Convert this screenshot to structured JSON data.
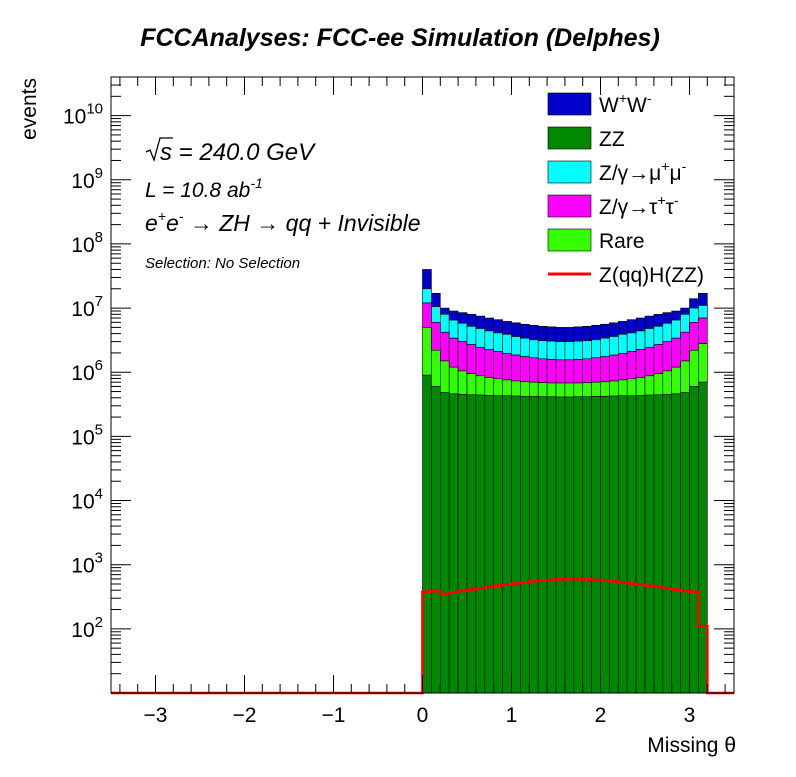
{
  "chart_data": {
    "type": "bar",
    "title": "FCCAnalyses: FCC-ee Simulation (Delphes)",
    "xlabel": "Missing θ",
    "ylabel": "events",
    "xlim": [
      -3.5,
      3.5
    ],
    "ylim": [
      10,
      40000000000
    ],
    "y_scale": "log",
    "x_ticks": [
      -3,
      -2,
      -1,
      0,
      1,
      2,
      3
    ],
    "y_tick_exponents": [
      2,
      3,
      4,
      5,
      6,
      7,
      8,
      9,
      10
    ],
    "y_tick_base": "10",
    "legend_position": "top-right",
    "stacked": true,
    "annotations": {
      "sqrt_s_prefix": "s",
      "sqrt_s_value": " = 240.0 GeV",
      "lumi_base": "L = 10.8 ab",
      "lumi_exp": "-1",
      "process_e": "e",
      "process_plus": "+",
      "process_e2": "e",
      "process_minus": "-",
      "process_rest": " → ZH → qq + Invisible",
      "selection": "Selection: No Selection"
    },
    "bins": {
      "centers": [
        0.05,
        0.15,
        0.25,
        0.35,
        0.45,
        0.55,
        0.65,
        0.75,
        0.85,
        0.95,
        1.05,
        1.15,
        1.25,
        1.35,
        1.45,
        1.55,
        1.65,
        1.75,
        1.85,
        1.95,
        2.05,
        2.15,
        2.25,
        2.35,
        2.45,
        2.55,
        2.65,
        2.75,
        2.85,
        2.95,
        3.05,
        3.15
      ],
      "width": 0.1
    },
    "stack_totals": [
      [
        0.05,
        40000000,
        20000000,
        12000000,
        5000000,
        900000
      ],
      [
        0.15,
        17000000,
        10500000,
        6000000,
        2200000,
        600000
      ],
      [
        0.25,
        10000000,
        8000000,
        4200000,
        1500000,
        480000
      ],
      [
        0.35,
        9000000,
        6500000,
        3400000,
        1200000,
        460000
      ],
      [
        0.45,
        8500000,
        5800000,
        3000000,
        1050000,
        450000
      ],
      [
        0.55,
        8000000,
        5200000,
        2700000,
        950000,
        445000
      ],
      [
        0.65,
        7500000,
        4800000,
        2450000,
        880000,
        440000
      ],
      [
        0.75,
        7000000,
        4400000,
        2250000,
        830000,
        435000
      ],
      [
        0.85,
        6600000,
        4100000,
        2100000,
        790000,
        430000
      ],
      [
        0.95,
        6200000,
        3900000,
        1950000,
        760000,
        430000
      ],
      [
        1.05,
        5900000,
        3600000,
        1850000,
        730000,
        425000
      ],
      [
        1.15,
        5600000,
        3400000,
        1750000,
        710000,
        420000
      ],
      [
        1.25,
        5400000,
        3200000,
        1680000,
        700000,
        420000
      ],
      [
        1.35,
        5200000,
        3100000,
        1620000,
        690000,
        415000
      ],
      [
        1.45,
        5100000,
        3050000,
        1580000,
        680000,
        415000
      ],
      [
        1.55,
        5000000,
        3000000,
        1560000,
        680000,
        410000
      ],
      [
        1.65,
        5000000,
        3000000,
        1560000,
        680000,
        410000
      ],
      [
        1.75,
        5100000,
        3050000,
        1580000,
        680000,
        415000
      ],
      [
        1.85,
        5200000,
        3100000,
        1620000,
        690000,
        415000
      ],
      [
        1.95,
        5400000,
        3200000,
        1680000,
        700000,
        420000
      ],
      [
        2.05,
        5600000,
        3400000,
        1750000,
        710000,
        420000
      ],
      [
        2.15,
        5900000,
        3600000,
        1850000,
        730000,
        425000
      ],
      [
        2.25,
        6200000,
        3900000,
        1950000,
        760000,
        430000
      ],
      [
        2.35,
        6600000,
        4100000,
        2100000,
        790000,
        430000
      ],
      [
        2.45,
        7000000,
        4400000,
        2250000,
        830000,
        435000
      ],
      [
        2.55,
        7500000,
        4800000,
        2450000,
        880000,
        440000
      ],
      [
        2.65,
        8000000,
        5200000,
        2700000,
        950000,
        445000
      ],
      [
        2.75,
        8500000,
        5800000,
        3000000,
        1050000,
        450000
      ],
      [
        2.85,
        9000000,
        6500000,
        3400000,
        1200000,
        460000
      ],
      [
        2.95,
        10000000,
        8000000,
        4200000,
        1500000,
        480000
      ],
      [
        3.05,
        14000000,
        10000000,
        6000000,
        2200000,
        600000
      ],
      [
        3.15,
        17000000,
        11000000,
        7000000,
        2800000,
        700000
      ]
    ],
    "stack_order_note": "",
    "series": [
      {
        "name": "W⁺W⁻",
        "label_base": "W",
        "label_sup1": "+",
        "label_base2": "W",
        "label_sup2": "-",
        "color": "#0000cc"
      },
      {
        "name": "ZZ",
        "label_base": "ZZ",
        "color": "#008800"
      },
      {
        "name": "Z/γ→μ⁺μ⁻",
        "label_base": "Z/γ→μ",
        "label_sup1": "+",
        "label_base2": "μ",
        "label_sup2": "-",
        "color": "#00ffff"
      },
      {
        "name": "Z/γ→τ⁺τ⁻",
        "label_base": "Z/γ→τ",
        "label_sup1": "+",
        "label_base2": "τ",
        "label_sup2": "-",
        "color": "#ff00ff"
      },
      {
        "name": "Rare",
        "label_base": "Rare",
        "color": "#33ff00"
      },
      {
        "name": "Z(qq)H(ZZ)",
        "label_base": "Z(qq)H(ZZ)",
        "color": "#ff0000",
        "style": "line"
      }
    ],
    "signal": {
      "name": "Z(qq)H(ZZ)",
      "values": [
        380,
        390,
        350,
        370,
        390,
        410,
        430,
        450,
        470,
        490,
        510,
        530,
        550,
        565,
        580,
        590,
        595,
        595,
        590,
        580,
        565,
        550,
        530,
        510,
        490,
        470,
        450,
        430,
        410,
        390,
        380,
        110
      ]
    }
  }
}
